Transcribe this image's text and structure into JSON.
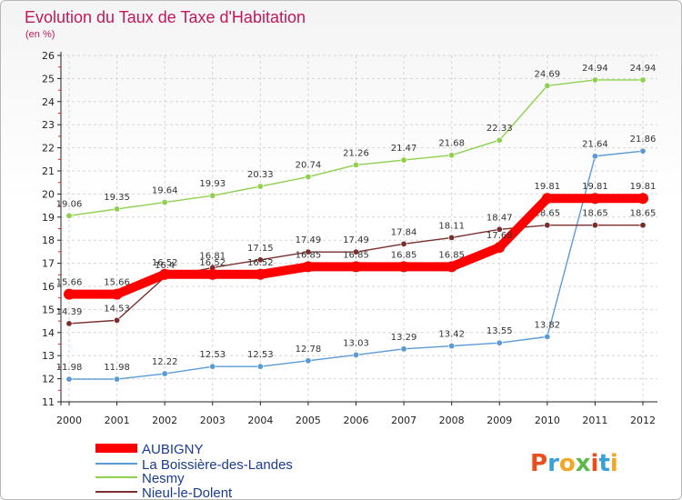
{
  "title": "Evolution du Taux de Taxe d'Habitation",
  "subtitle": "(en %)",
  "logo": "Proxiti",
  "chart_data": {
    "type": "line",
    "title": "Evolution du Taux de Taxe d'Habitation",
    "ylabel": "(en %)",
    "xlabel": "",
    "x": [
      "2000",
      "2001",
      "2002",
      "2003",
      "2004",
      "2005",
      "2006",
      "2007",
      "2008",
      "2009",
      "2010",
      "2011",
      "2012"
    ],
    "ylim": [
      11,
      26
    ],
    "yticks": [
      "11",
      "12",
      "13",
      "14",
      "15",
      "16",
      "17",
      "18",
      "19",
      "20",
      "21",
      "22",
      "23",
      "24",
      "25",
      "26"
    ],
    "grid": true,
    "legend_position": "bottom-left",
    "series": [
      {
        "name": "La Boissière-des-Landes",
        "color": "#5b9bd5",
        "values": [
          11.98,
          11.98,
          12.22,
          12.53,
          12.53,
          12.78,
          13.03,
          13.29,
          13.42,
          13.55,
          13.82,
          21.64,
          21.86
        ],
        "labels": [
          "11.98",
          "11.98",
          "12.22",
          "12.53",
          "12.53",
          "12.78",
          "13.03",
          "13.29",
          "13.42",
          "13.55",
          "13.82",
          "21.64",
          "21.86"
        ]
      },
      {
        "name": "Nesmy",
        "color": "#8fd14f",
        "values": [
          19.06,
          19.35,
          19.64,
          19.93,
          20.33,
          20.74,
          21.26,
          21.47,
          21.68,
          22.33,
          24.69,
          24.94,
          24.94
        ],
        "labels": [
          "19.06",
          "19.35",
          "19.64",
          "19.93",
          "20.33",
          "20.74",
          "21.26",
          "21.47",
          "21.68",
          "22.33",
          "24.69",
          "24.94",
          "24.94"
        ]
      },
      {
        "name": "Nieul-le-Dolent",
        "color": "#7a2e2e",
        "values": [
          14.39,
          14.53,
          16.4,
          16.81,
          17.15,
          17.49,
          17.49,
          17.84,
          18.11,
          18.47,
          18.65,
          18.65,
          18.65
        ],
        "labels": [
          "14.39",
          "14.53",
          "16.4",
          "16.81",
          "17.15",
          "17.49",
          "17.49",
          "17.84",
          "18.11",
          "18.47",
          "18.65",
          "18.65",
          "18.65"
        ]
      },
      {
        "name": "AUBIGNY",
        "color": "#ff0000",
        "values": [
          15.66,
          15.66,
          16.52,
          16.52,
          16.52,
          16.85,
          16.85,
          16.85,
          16.85,
          17.69,
          19.81,
          19.81,
          19.81
        ],
        "labels": [
          "15.66",
          "15.66",
          "16.52",
          "16.52",
          "16.52",
          "16.85",
          "16.85",
          "16.85",
          "16.85",
          "17.69",
          "19.81",
          "19.81",
          "19.81"
        ]
      }
    ],
    "legend": [
      "AUBIGNY",
      "La Boissière-des-Landes",
      "Nesmy",
      "Nieul-le-Dolent"
    ]
  }
}
